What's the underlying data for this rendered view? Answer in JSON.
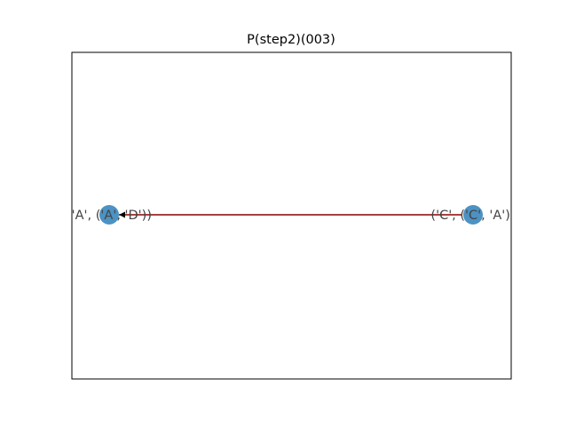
{
  "figure": {
    "title": "P(step2)(003)"
  },
  "graph": {
    "nodes": [
      {
        "id": "left",
        "label": "('A', ('A', 'D'))"
      },
      {
        "id": "right",
        "label": "('C', ('C', 'A'))"
      }
    ],
    "edges": [
      {
        "from": "right",
        "to": "left"
      }
    ]
  },
  "colors": {
    "node_fill": "#1f77b4",
    "edge": "#8b0000",
    "frame": "#000000",
    "background": "#ffffff"
  }
}
